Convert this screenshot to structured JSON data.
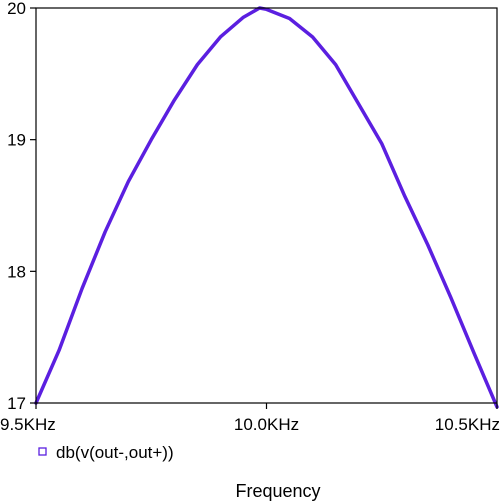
{
  "chart_data": {
    "type": "line",
    "title": "",
    "xlabel": "Frequency",
    "ylabel": "",
    "xlim": [
      9.5,
      10.5
    ],
    "ylim": [
      17,
      20
    ],
    "x_ticks": [
      {
        "value": 9.5,
        "label": "9.5KHz"
      },
      {
        "value": 10.0,
        "label": "10.0KHz"
      },
      {
        "value": 10.5,
        "label": "10.5KHz"
      }
    ],
    "y_ticks": [
      {
        "value": 17,
        "label": "17"
      },
      {
        "value": 18,
        "label": "18"
      },
      {
        "value": 19,
        "label": "19"
      },
      {
        "value": 20,
        "label": "20"
      }
    ],
    "grid": false,
    "legend_position": "bottom-left",
    "series": [
      {
        "name": "db(v(out-,out+))",
        "color": "#5b1fe0",
        "x": [
          9.5,
          9.55,
          9.6,
          9.65,
          9.7,
          9.75,
          9.8,
          9.85,
          9.9,
          9.95,
          9.985,
          10.0,
          10.05,
          10.1,
          10.15,
          10.2,
          10.25,
          10.3,
          10.35,
          10.4,
          10.45,
          10.5
        ],
        "values": [
          17.0,
          17.4,
          17.87,
          18.3,
          18.68,
          19.0,
          19.3,
          19.57,
          19.78,
          19.93,
          20.0,
          19.99,
          19.92,
          19.78,
          19.57,
          19.27,
          18.97,
          18.57,
          18.2,
          17.8,
          17.38,
          16.97
        ]
      }
    ]
  }
}
